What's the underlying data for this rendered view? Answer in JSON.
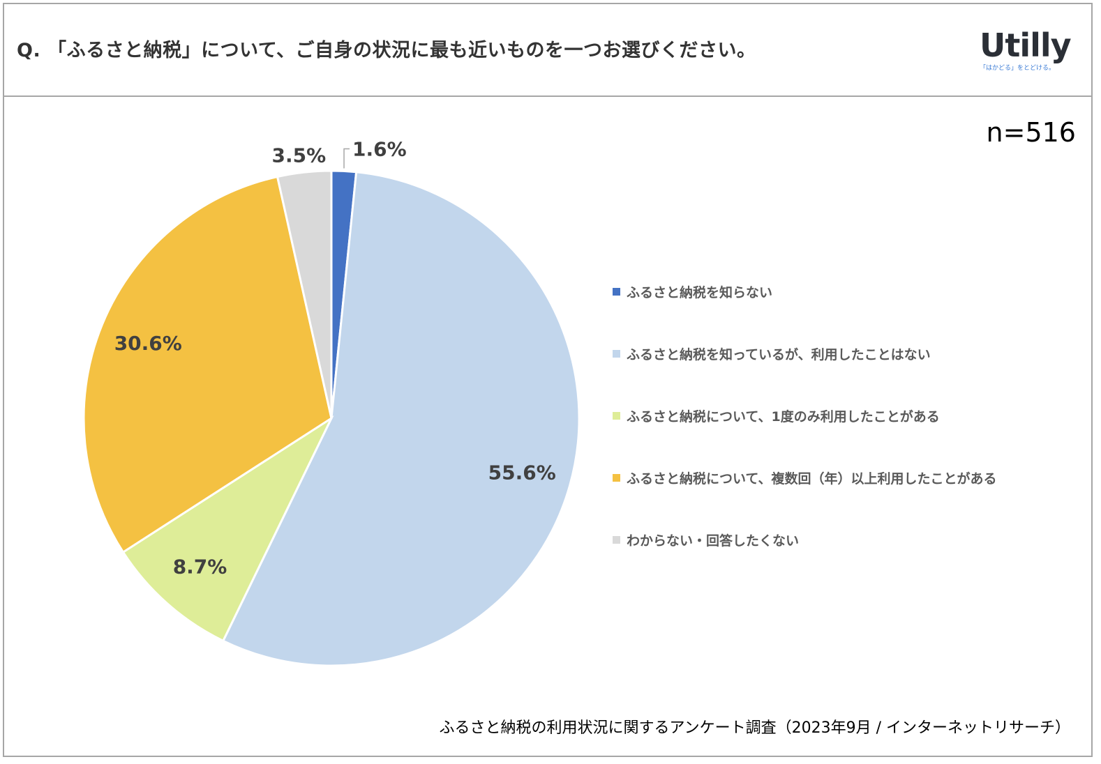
{
  "header": {
    "title": "Q. 「ふるさと納税」について、ご自身の状況に最も近いものを一つお選びください。",
    "logo_text": "Utilly",
    "logo_tagline": "「はかどる」をとどける。"
  },
  "sample_size": "n=516",
  "source": "ふるさと納税の利用状況に関するアンケート調査（2023年9月 / インターネットリサーチ）",
  "chart_data": {
    "type": "pie",
    "title": "Q. 「ふるさと納税」について、ご自身の状況に最も近いものを一つお選びください。",
    "unit": "%",
    "start": "12 o'clock, clockwise",
    "legend_position": "right",
    "slices": [
      {
        "label": "ふるさと納税を知らない",
        "value": 1.6,
        "display": "1.6%",
        "color": "#4472c4"
      },
      {
        "label": "ふるさと納税を知っているが、利用したことはない",
        "value": 55.6,
        "display": "55.6%",
        "color": "#c2d6ec"
      },
      {
        "label": "ふるさと納税について、1度のみ利用したことがある",
        "value": 8.7,
        "display": "8.7%",
        "color": "#deed98"
      },
      {
        "label": "ふるさと納税について、複数回（年）以上利用したことがある",
        "value": 30.6,
        "display": "30.6%",
        "color": "#f4c142"
      },
      {
        "label": "わからない・回答したくない",
        "value": 3.5,
        "display": "3.5%",
        "color": "#d9d9d9"
      }
    ]
  }
}
